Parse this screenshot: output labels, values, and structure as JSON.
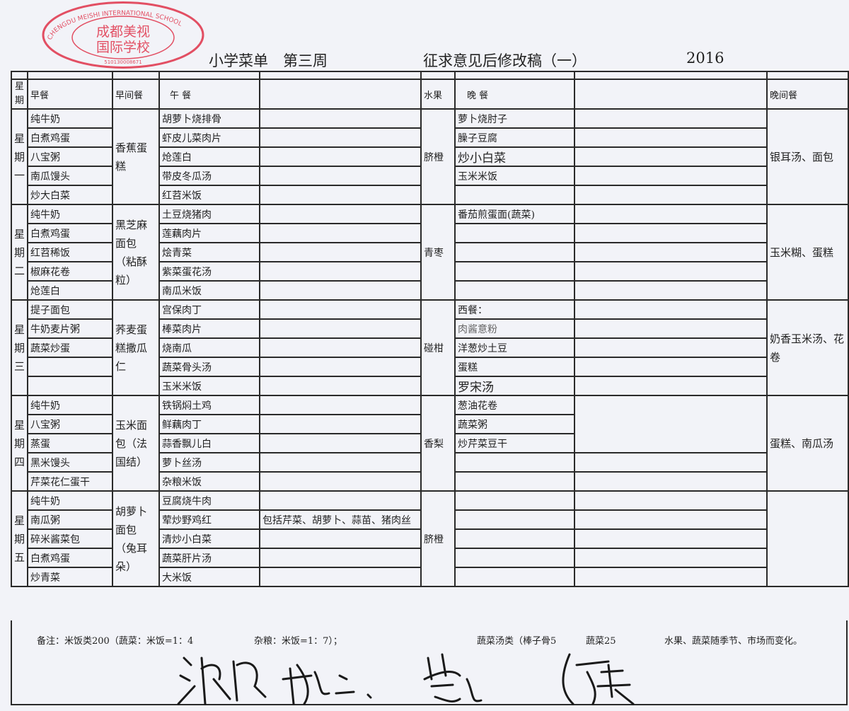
{
  "stamp": {
    "cn_name": "成都美视国际学校",
    "en_name": "CHENGDU MEISHI INTERNATIONAL SCHOOL",
    "number": "5101xx0088xx71",
    "color": "#e0334a"
  },
  "title": {
    "main": "小学菜单　第三周",
    "subtitle": "征求意见后修改稿（一）",
    "year": "2016"
  },
  "headers": {
    "day": "星期",
    "breakfast": "早餐",
    "morning_snack": "早间餐",
    "lunch": "午 餐",
    "fruit": "水果",
    "dinner": "晚 餐",
    "evening_snack": "晚间餐"
  },
  "days": [
    {
      "label": "星期一",
      "breakfast": [
        "纯牛奶",
        "白煮鸡蛋",
        "八宝粥",
        "南瓜馒头",
        "炒大白菜"
      ],
      "morning_snack": "香蕉蛋糕",
      "lunch": [
        "胡萝卜烧排骨",
        "虾皮儿菜肉片",
        "炝莲白",
        "带皮冬瓜汤",
        "红苕米饭"
      ],
      "lunch_notes": [
        "",
        "",
        "",
        "",
        ""
      ],
      "fruit": "脐橙",
      "dinner": [
        "萝卜烧肘子",
        "臊子豆腐",
        "炒小白菜",
        "玉米米饭",
        ""
      ],
      "evening_snack": "银耳汤、面包"
    },
    {
      "label": "星期二",
      "breakfast": [
        "纯牛奶",
        "白煮鸡蛋",
        "红苕稀饭",
        "椒麻花卷",
        "炝莲白"
      ],
      "morning_snack": "黑芝麻面包（粘酥粒）",
      "lunch": [
        "土豆烧猪肉",
        "莲藕肉片",
        "烩青菜",
        "紫菜蛋花汤",
        "南瓜米饭"
      ],
      "lunch_notes": [
        "",
        "",
        "",
        "",
        ""
      ],
      "fruit": "青枣",
      "dinner": [
        "番茄煎蛋面(蔬菜)",
        "",
        "",
        "",
        ""
      ],
      "evening_snack": "玉米糊、蛋糕"
    },
    {
      "label": "星期三",
      "breakfast": [
        "提子面包",
        "牛奶麦片粥",
        "蔬菜炒蛋",
        "",
        ""
      ],
      "morning_snack": "荞麦蛋糕撒瓜仁",
      "lunch": [
        "宫保肉丁",
        "棒菜肉片",
        "烧南瓜",
        "蔬菜骨头汤",
        "玉米米饭"
      ],
      "lunch_notes": [
        "",
        "",
        "",
        "",
        ""
      ],
      "fruit": "碰柑",
      "dinner": [
        "西餐：",
        "肉酱意粉",
        "洋葱炒土豆",
        "蛋糕",
        "罗宋汤"
      ],
      "evening_snack": "奶香玉米汤、花卷"
    },
    {
      "label": "星期四",
      "breakfast": [
        "纯牛奶",
        "八宝粥",
        "蒸蛋",
        "黑米馒头",
        "芹菜花仁蛋干"
      ],
      "morning_snack": "玉米面包（法国结）",
      "lunch": [
        "铁锅焖土鸡",
        "鲜藕肉丁",
        "蒜香飘儿白",
        "萝卜丝汤",
        "杂粮米饭"
      ],
      "lunch_notes": [
        "",
        "",
        "",
        "",
        ""
      ],
      "fruit": "香梨",
      "dinner": [
        "葱油花卷",
        "蔬菜粥",
        "炒芹菜豆干",
        "",
        ""
      ],
      "evening_snack": "蛋糕、南瓜汤"
    },
    {
      "label": "星期五",
      "breakfast": [
        "纯牛奶",
        "南瓜粥",
        "碎米酱菜包",
        "白煮鸡蛋",
        "炒青菜"
      ],
      "morning_snack": "胡萝卜面包（兔耳朵）",
      "lunch": [
        "豆腐烧牛肉",
        "荤炒野鸡红",
        "清炒小白菜",
        "蔬菜肝片汤",
        "大米饭"
      ],
      "lunch_notes": [
        "",
        "包括芹菜、胡萝卜、蒜苗、猪肉丝",
        "",
        "",
        ""
      ],
      "fruit": "脐橙",
      "dinner": [
        "",
        "",
        "",
        "",
        ""
      ],
      "evening_snack": ""
    }
  ],
  "footer": {
    "note1": "备注：米饭类200（蔬菜：米饭=1：4",
    "note2": "杂粮：米饭=1：7）；",
    "note3": "蔬菜汤类（棒子骨5",
    "note4": "蔬菜25",
    "note5": "水果、蔬菜随季节、市场而变化。"
  },
  "signatures": [
    "签名1",
    "签名2",
    "签名3",
    "签名4"
  ]
}
